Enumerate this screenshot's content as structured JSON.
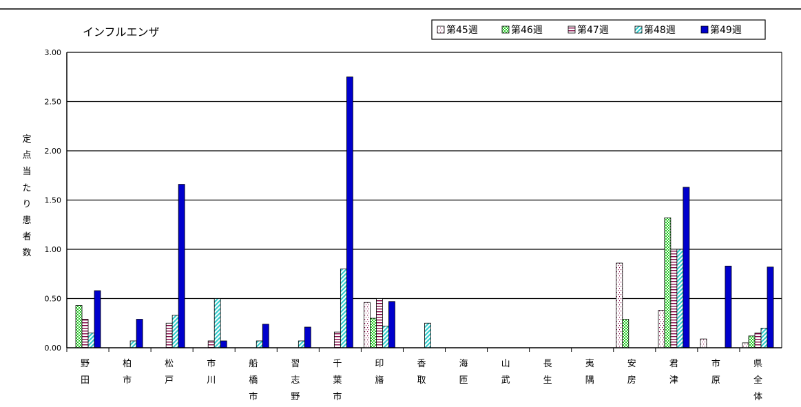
{
  "chart_data": {
    "type": "bar",
    "title": "インフルエンザ",
    "ylabel": "定点当たり患者数",
    "ylim": [
      0,
      3.0
    ],
    "yticks": [
      "0.00",
      "0.50",
      "1.00",
      "1.50",
      "2.00",
      "2.50",
      "3.00"
    ],
    "grid": true,
    "legend_position": "top-right",
    "categories": [
      [
        "野",
        "田"
      ],
      [
        "柏",
        "市"
      ],
      [
        "松",
        "戸"
      ],
      [
        "市",
        "川"
      ],
      [
        "船",
        "橋",
        "市"
      ],
      [
        "習",
        "志",
        "野"
      ],
      [
        "千",
        "葉",
        "市"
      ],
      [
        "印",
        "旛"
      ],
      [
        "香",
        "取"
      ],
      [
        "海",
        "匝"
      ],
      [
        "山",
        "武"
      ],
      [
        "長",
        "生"
      ],
      [
        "夷",
        "隅"
      ],
      [
        "安",
        "房"
      ],
      [
        "君",
        "津"
      ],
      [
        "市",
        "原"
      ],
      [
        "県",
        "全",
        "体"
      ]
    ],
    "series": [
      {
        "name": "第45週",
        "pattern": "dots",
        "color": "#ffffff",
        "values": [
          0,
          0,
          0,
          0,
          0,
          0,
          0,
          0.46,
          0,
          0,
          0,
          0,
          0,
          0.86,
          0.38,
          0.09,
          0.05
        ]
      },
      {
        "name": "第46週",
        "pattern": "green-check",
        "color": "#33cc33",
        "values": [
          0.43,
          0,
          0,
          0,
          0,
          0,
          0,
          0.3,
          0,
          0,
          0,
          0,
          0,
          0.29,
          1.32,
          0,
          0.12
        ]
      },
      {
        "name": "第47週",
        "pattern": "hstripes",
        "color": "#800040",
        "values": [
          0.29,
          0,
          0.25,
          0.07,
          0,
          0,
          0.16,
          0.5,
          0,
          0,
          0,
          0,
          0,
          0,
          1.0,
          0,
          0.15
        ]
      },
      {
        "name": "第48週",
        "pattern": "cyan-diag",
        "color": "#66cccc",
        "values": [
          0.15,
          0.07,
          0.33,
          0.5,
          0.07,
          0.07,
          0.8,
          0.22,
          0.25,
          0,
          0,
          0,
          0,
          0,
          1.0,
          0,
          0.2
        ]
      },
      {
        "name": "第49週",
        "pattern": "solid",
        "color": "#0000cc",
        "values": [
          0.58,
          0.29,
          1.66,
          0.07,
          0.24,
          0.21,
          2.75,
          0.47,
          0,
          0,
          0,
          0,
          0,
          0,
          1.63,
          0.83,
          0.82
        ]
      }
    ]
  }
}
